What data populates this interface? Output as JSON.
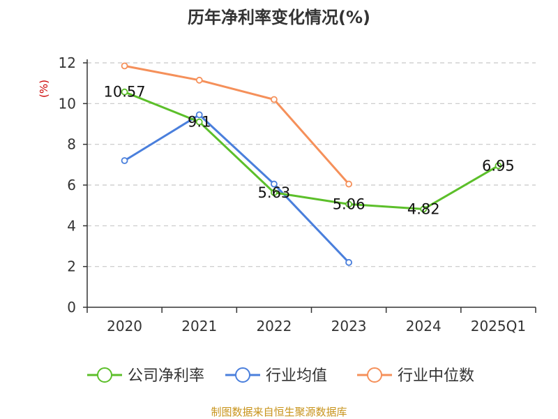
{
  "chart_data": {
    "type": "line",
    "title": "历年净利率变化情况(%)",
    "ylabel": "(%)",
    "xlabel": "",
    "ylim": [
      0,
      12
    ],
    "yticks": [
      0,
      2,
      4,
      6,
      8,
      10,
      12
    ],
    "grid": true,
    "legend_position": "bottom",
    "categories": [
      "2020",
      "2021",
      "2022",
      "2023",
      "2024",
      "2025Q1"
    ],
    "series": [
      {
        "name": "公司净利率",
        "color": "#5cbf2a",
        "values": [
          10.57,
          9.1,
          5.63,
          5.06,
          4.82,
          6.95
        ],
        "labels": [
          "10.57",
          "9.1",
          "5.63",
          "5.06",
          "4.82",
          "6.95"
        ]
      },
      {
        "name": "行业均值",
        "color": "#4a7fdc",
        "values": [
          7.2,
          9.45,
          6.05,
          2.2,
          null,
          null
        ]
      },
      {
        "name": "行业中位数",
        "color": "#f5905a",
        "values": [
          11.85,
          11.15,
          10.2,
          6.05,
          null,
          null
        ]
      }
    ],
    "source": "制图数据来自恒生聚源数据库"
  }
}
